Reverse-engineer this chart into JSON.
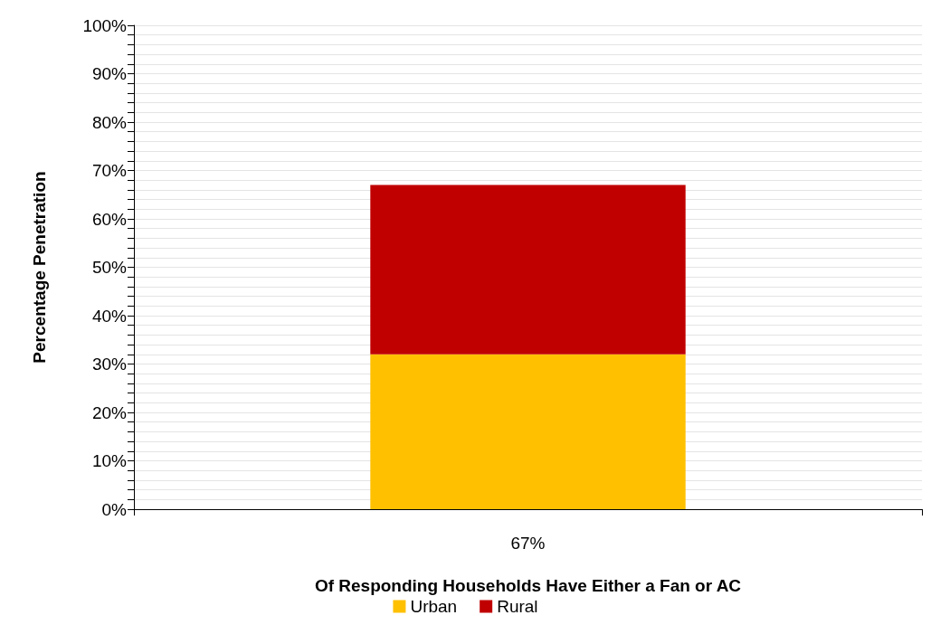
{
  "chart_data": {
    "type": "bar",
    "stacked": true,
    "categories": [
      "67%"
    ],
    "xlabel": "Of Responding Households Have Either a Fan or AC",
    "ylabel": "Percentage Penetration",
    "series": [
      {
        "name": "Urban",
        "color": "#ffc000",
        "values": [
          32
        ]
      },
      {
        "name": "Rural",
        "color": "#c00000",
        "values": [
          35
        ]
      }
    ],
    "ylim": [
      0,
      100
    ],
    "yticks": [
      {
        "value": 0,
        "label": "0%"
      },
      {
        "value": 2,
        "label": null
      },
      {
        "value": 4,
        "label": null
      },
      {
        "value": 6,
        "label": null
      },
      {
        "value": 8,
        "label": null
      },
      {
        "value": 10,
        "label": "10%"
      },
      {
        "value": 12,
        "label": null
      },
      {
        "value": 14,
        "label": null
      },
      {
        "value": 16,
        "label": null
      },
      {
        "value": 18,
        "label": null
      },
      {
        "value": 20,
        "label": "20%"
      },
      {
        "value": 22,
        "label": null
      },
      {
        "value": 24,
        "label": null
      },
      {
        "value": 26,
        "label": null
      },
      {
        "value": 28,
        "label": null
      },
      {
        "value": 30,
        "label": "30%"
      },
      {
        "value": 32,
        "label": null
      },
      {
        "value": 34,
        "label": null
      },
      {
        "value": 36,
        "label": null
      },
      {
        "value": 38,
        "label": null
      },
      {
        "value": 40,
        "label": "40%"
      },
      {
        "value": 42,
        "label": null
      },
      {
        "value": 44,
        "label": null
      },
      {
        "value": 46,
        "label": null
      },
      {
        "value": 48,
        "label": null
      },
      {
        "value": 50,
        "label": "50%"
      },
      {
        "value": 52,
        "label": null
      },
      {
        "value": 54,
        "label": null
      },
      {
        "value": 56,
        "label": null
      },
      {
        "value": 58,
        "label": null
      },
      {
        "value": 60,
        "label": "60%"
      },
      {
        "value": 62,
        "label": null
      },
      {
        "value": 64,
        "label": null
      },
      {
        "value": 66,
        "label": null
      },
      {
        "value": 68,
        "label": null
      },
      {
        "value": 70,
        "label": "70%"
      },
      {
        "value": 72,
        "label": null
      },
      {
        "value": 74,
        "label": null
      },
      {
        "value": 76,
        "label": null
      },
      {
        "value": 78,
        "label": null
      },
      {
        "value": 80,
        "label": "80%"
      },
      {
        "value": 82,
        "label": null
      },
      {
        "value": 84,
        "label": null
      },
      {
        "value": 86,
        "label": null
      },
      {
        "value": 88,
        "label": null
      },
      {
        "value": 90,
        "label": "90%"
      },
      {
        "value": 92,
        "label": null
      },
      {
        "value": 94,
        "label": null
      },
      {
        "value": 96,
        "label": null
      },
      {
        "value": 98,
        "label": null
      },
      {
        "value": 100,
        "label": "100%"
      }
    ],
    "grid": "y",
    "legend": "bottom"
  }
}
